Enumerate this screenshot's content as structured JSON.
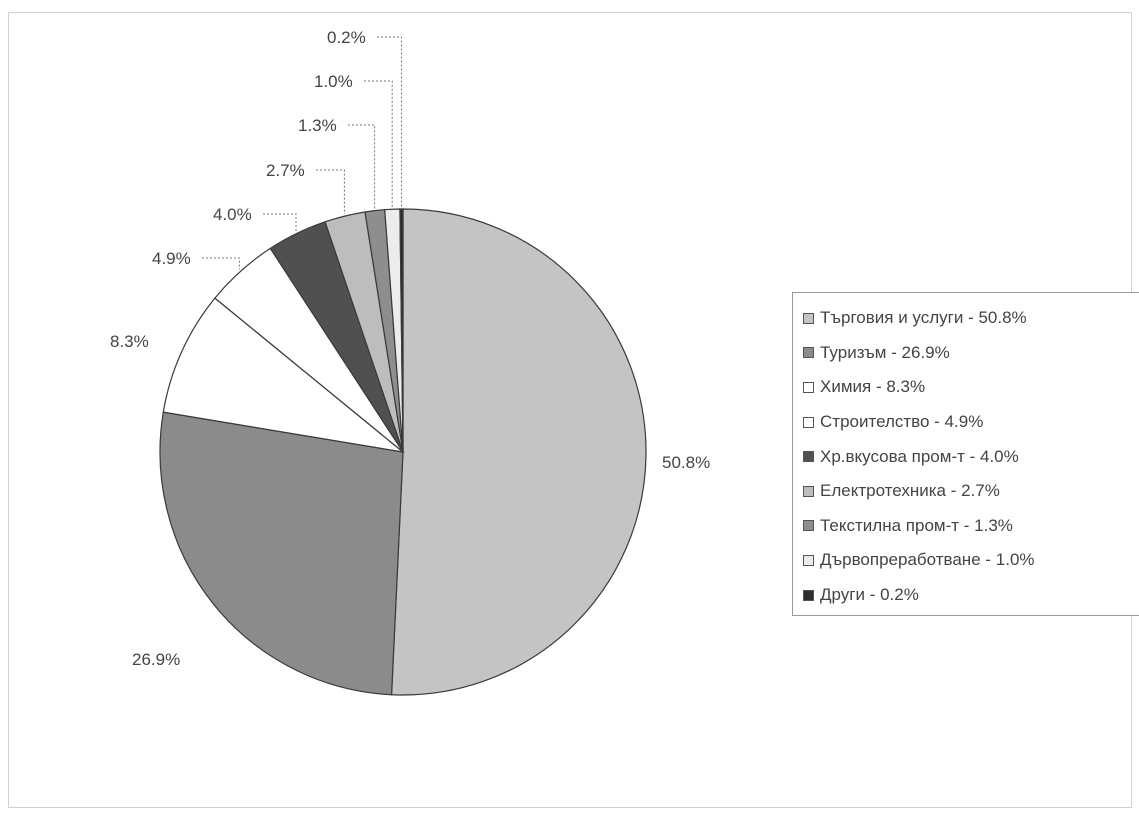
{
  "chart_data": {
    "type": "pie",
    "categories": [
      "Търговия и услуги",
      "Туризъм",
      "Химия",
      "Строителство",
      "Хр.вкусова пром-т",
      "Електротехника",
      "Текстилна пром-т",
      "Дървопреработване",
      "Други"
    ],
    "values": [
      50.8,
      26.9,
      8.3,
      4.9,
      4.0,
      2.7,
      1.3,
      1.0,
      0.2
    ],
    "slice_labels": [
      "50.8%",
      "26.9%",
      "8.3%",
      "4.9%",
      "4.0%",
      "2.7%",
      "1.3%",
      "1.0%",
      "0.2%"
    ],
    "legend_labels": [
      "Търговия и услуги - 50.8%",
      "Туризъм - 26.9%",
      "Химия - 8.3%",
      "Строителство - 4.9%",
      "Хр.вкусова пром-т - 4.0%",
      "Електротехника - 2.7%",
      "Текстилна пром-т - 1.3%",
      "Дървопреработване - 1.0%",
      "Други - 0.2%"
    ],
    "colors": [
      "#c4c4c4",
      "#8b8b8b",
      "#ffffff",
      "#ffffff",
      "#505050",
      "#bdbdbd",
      "#8e8e8e",
      "#ececec",
      "#2e2e2e"
    ],
    "start": "12 o'clock",
    "direction": "clockwise",
    "legend_position": "right"
  }
}
